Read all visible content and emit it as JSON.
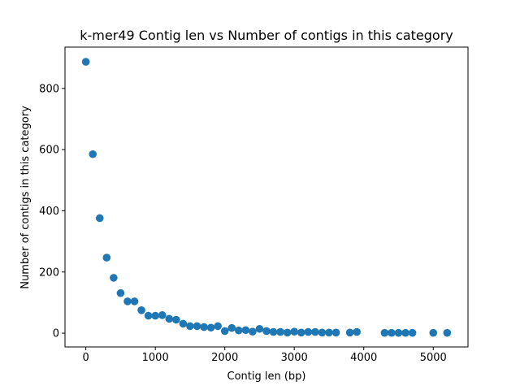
{
  "chart_data": {
    "type": "scatter",
    "title": "k-mer49 Contig len vs Number of contigs in this category",
    "xlabel": "Contig len (bp)",
    "ylabel": "Number of contigs in this category",
    "xlim": [
      -300,
      5500
    ],
    "ylim": [
      -45,
      935
    ],
    "xticks": [
      0,
      1000,
      2000,
      3000,
      4000,
      5000
    ],
    "xtick_labels": [
      "0",
      "1000",
      "2000",
      "3000",
      "4000",
      "5000"
    ],
    "yticks": [
      0,
      200,
      400,
      600,
      800
    ],
    "ytick_labels": [
      "0",
      "200",
      "400",
      "600",
      "800"
    ],
    "grid": false,
    "marker_color": "#1f77b4",
    "x": [
      0,
      100,
      200,
      300,
      400,
      500,
      600,
      700,
      800,
      900,
      1000,
      1100,
      1200,
      1300,
      1400,
      1500,
      1600,
      1700,
      1800,
      1900,
      2000,
      2100,
      2200,
      2300,
      2400,
      2500,
      2600,
      2700,
      2800,
      2900,
      3000,
      3100,
      3200,
      3300,
      3400,
      3500,
      3600,
      3800,
      3900,
      4300,
      4400,
      4500,
      4600,
      4700,
      5000,
      5200
    ],
    "y": [
      887,
      585,
      376,
      247,
      181,
      131,
      104,
      104,
      75,
      57,
      57,
      59,
      47,
      44,
      31,
      23,
      23,
      20,
      18,
      23,
      7,
      17,
      9,
      10,
      5,
      14,
      7,
      4,
      4,
      2,
      5,
      2,
      4,
      4,
      2,
      2,
      2,
      2,
      4,
      1,
      1,
      1,
      1,
      1,
      1,
      1
    ]
  }
}
